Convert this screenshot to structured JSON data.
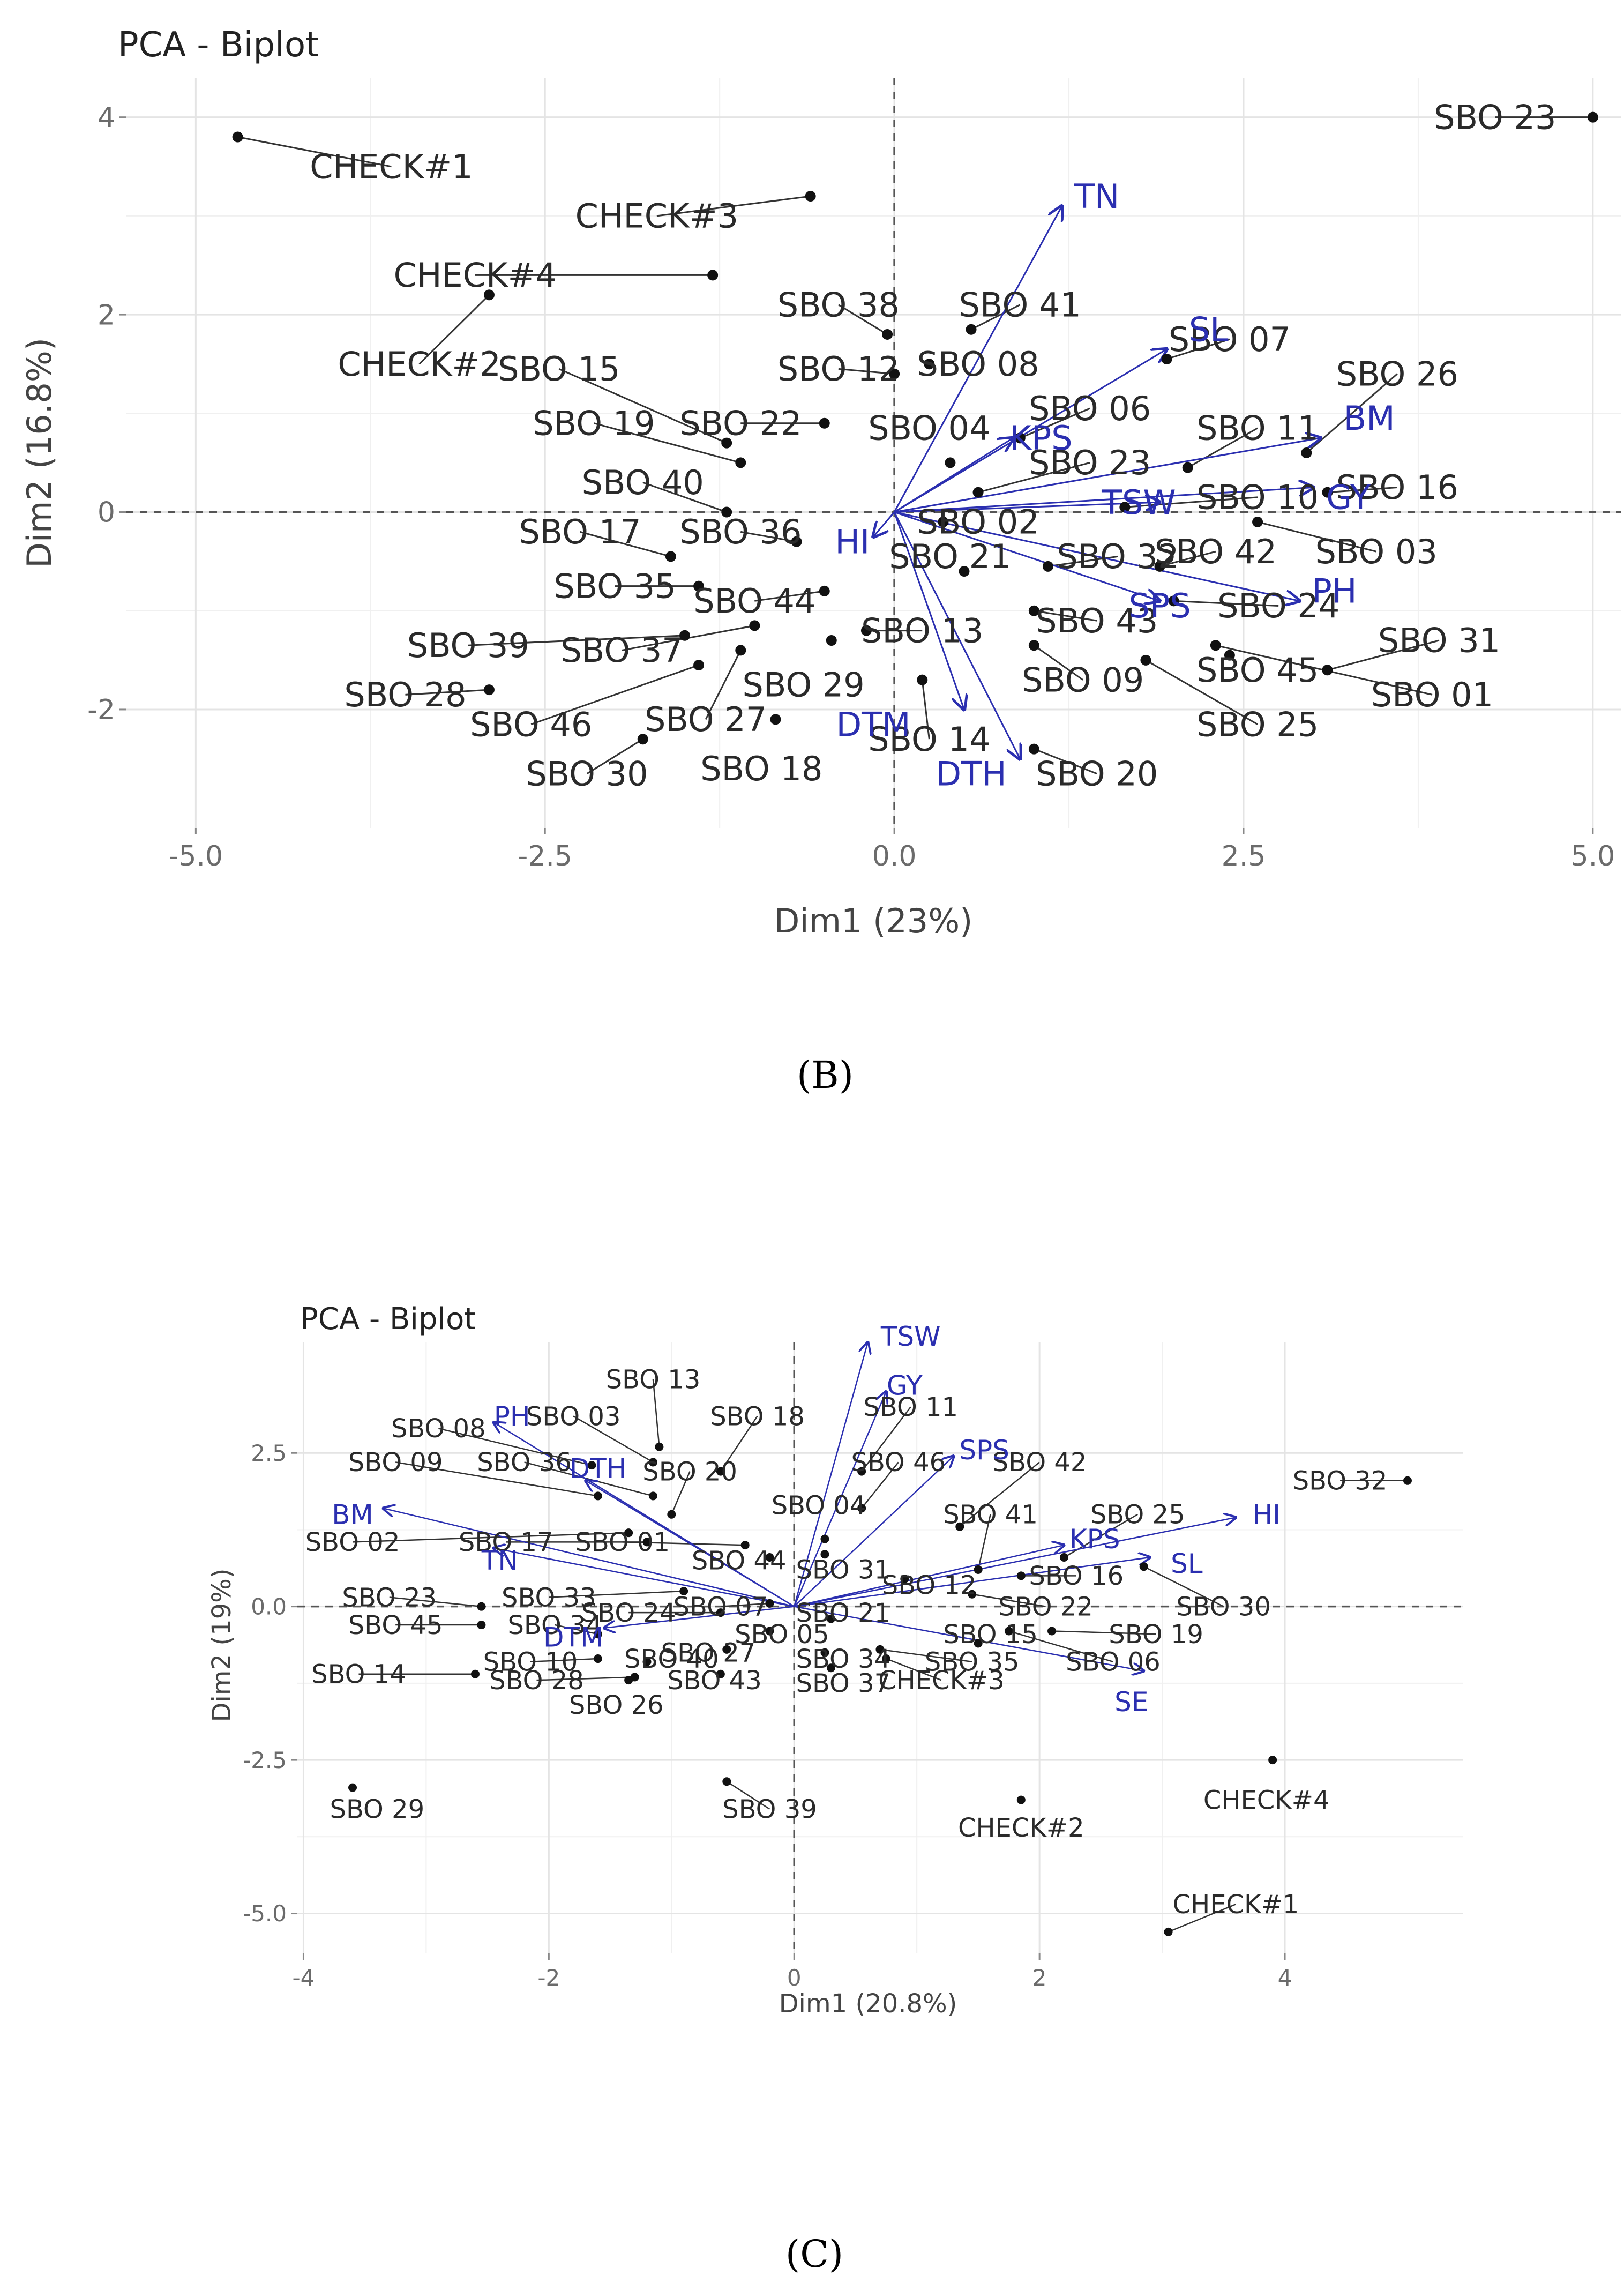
{
  "colors": {
    "background": "#ffffff",
    "grid_major": "#e4e4e4",
    "grid_minor": "#f0f0f0",
    "point": "#111111",
    "text": "#2a2a2a",
    "variable": "#2b2fb0",
    "zero_line": "#555555"
  },
  "chart_data": [
    {
      "type": "scatter",
      "title": "PCA - Biplot",
      "xlabel": "Dim1 (23%)",
      "ylabel": "Dim2 (16.8%)",
      "caption": "(B)",
      "xlim": [
        -5.5,
        5.2
      ],
      "ylim": [
        -3.2,
        4.4
      ],
      "x_ticks": [
        -5.0,
        -2.5,
        0.0,
        2.5,
        5.0
      ],
      "x_tick_labels": [
        "-5.0",
        "-2.5",
        "0.0",
        "2.5",
        "5.0"
      ],
      "y_ticks": [
        -2,
        0,
        2,
        4
      ],
      "y_tick_labels": [
        "-2",
        "0",
        "2",
        "4"
      ],
      "observations": [
        {
          "label": "CHECK#1",
          "x": -4.7,
          "y": 3.8,
          "lx": -3.6,
          "ly": 3.5
        },
        {
          "label": "CHECK#3",
          "x": -0.6,
          "y": 3.2,
          "lx": -1.7,
          "ly": 3.0
        },
        {
          "label": "CHECK#4",
          "x": -1.3,
          "y": 2.4,
          "lx": -3.0,
          "ly": 2.4
        },
        {
          "label": "CHECK#2",
          "x": -2.9,
          "y": 2.2,
          "lx": -3.4,
          "ly": 1.5
        },
        {
          "label": "SBO 23",
          "x": 5.0,
          "y": 4.0,
          "lx": 4.3,
          "ly": 4.0
        },
        {
          "label": "SBO 38",
          "x": -0.05,
          "y": 1.8,
          "lx": -0.4,
          "ly": 2.1
        },
        {
          "label": "SBO 41",
          "x": 0.55,
          "y": 1.85,
          "lx": 0.9,
          "ly": 2.1
        },
        {
          "label": "SBO 12",
          "x": 0.0,
          "y": 1.4,
          "lx": -0.4,
          "ly": 1.45
        },
        {
          "label": "SBO 08",
          "x": 0.25,
          "y": 1.5,
          "lx": 0.6,
          "ly": 1.5
        },
        {
          "label": "SBO 07",
          "x": 1.95,
          "y": 1.55,
          "lx": 2.4,
          "ly": 1.75
        },
        {
          "label": "SBO 26",
          "x": 2.95,
          "y": 0.6,
          "lx": 3.6,
          "ly": 1.4
        },
        {
          "label": "SBO 15",
          "x": -1.2,
          "y": 0.7,
          "lx": -2.4,
          "ly": 1.45
        },
        {
          "label": "SBO 22",
          "x": -0.5,
          "y": 0.9,
          "lx": -1.1,
          "ly": 0.9
        },
        {
          "label": "SBO 19",
          "x": -1.1,
          "y": 0.5,
          "lx": -2.15,
          "ly": 0.9
        },
        {
          "label": "SBO 06",
          "x": 0.9,
          "y": 0.75,
          "lx": 1.4,
          "ly": 1.05
        },
        {
          "label": "SBO 04",
          "x": 0.4,
          "y": 0.5,
          "lx": 0.25,
          "ly": 0.85
        },
        {
          "label": "SBO 11",
          "x": 2.1,
          "y": 0.45,
          "lx": 2.6,
          "ly": 0.85
        },
        {
          "label": "SBO 23",
          "x": 0.6,
          "y": 0.2,
          "lx": 1.4,
          "ly": 0.5
        },
        {
          "label": "SBO 40",
          "x": -1.2,
          "y": 0.0,
          "lx": -1.8,
          "ly": 0.3
        },
        {
          "label": "SBO 10",
          "x": 1.65,
          "y": 0.05,
          "lx": 2.6,
          "ly": 0.15
        },
        {
          "label": "SBO 16",
          "x": 3.1,
          "y": 0.2,
          "lx": 3.6,
          "ly": 0.25
        },
        {
          "label": "SBO 03",
          "x": 2.6,
          "y": -0.1,
          "lx": 3.45,
          "ly": -0.4
        },
        {
          "label": "SBO 02",
          "x": 0.35,
          "y": -0.1,
          "lx": 0.6,
          "ly": -0.1
        },
        {
          "label": "SBO 17",
          "x": -1.6,
          "y": -0.45,
          "lx": -2.25,
          "ly": -0.2
        },
        {
          "label": "SBO 36",
          "x": -0.7,
          "y": -0.3,
          "lx": -1.1,
          "ly": -0.2
        },
        {
          "label": "SBO 21",
          "x": 0.5,
          "y": -0.6,
          "lx": 0.4,
          "ly": -0.45
        },
        {
          "label": "SBO 32",
          "x": 1.1,
          "y": -0.55,
          "lx": 1.6,
          "ly": -0.45
        },
        {
          "label": "SBO 42",
          "x": 1.9,
          "y": -0.55,
          "lx": 2.3,
          "ly": -0.4
        },
        {
          "label": "SBO 35",
          "x": -1.4,
          "y": -0.75,
          "lx": -2.0,
          "ly": -0.75
        },
        {
          "label": "SBO 44",
          "x": -0.5,
          "y": -0.8,
          "lx": -1.0,
          "ly": -0.9
        },
        {
          "label": "SBO 43",
          "x": 1.0,
          "y": -1.0,
          "lx": 1.45,
          "ly": -1.1
        },
        {
          "label": "SBO 24",
          "x": 2.0,
          "y": -0.9,
          "lx": 2.75,
          "ly": -0.95
        },
        {
          "label": "SBO 39",
          "x": -1.5,
          "y": -1.25,
          "lx": -3.05,
          "ly": -1.35
        },
        {
          "label": "SBO 37",
          "x": -1.0,
          "y": -1.15,
          "lx": -1.95,
          "ly": -1.4
        },
        {
          "label": "SBO 13",
          "x": -0.2,
          "y": -1.2,
          "lx": 0.2,
          "ly": -1.2
        },
        {
          "label": "SBO 31",
          "x": 3.1,
          "y": -1.6,
          "lx": 3.9,
          "ly": -1.3
        },
        {
          "label": "SBO 45",
          "x": 2.4,
          "y": -1.45,
          "lx": 2.6,
          "ly": -1.6
        },
        {
          "label": "SBO 09",
          "x": 1.0,
          "y": -1.35,
          "lx": 1.35,
          "ly": -1.7
        },
        {
          "label": "SBO 29",
          "x": -0.45,
          "y": -1.3,
          "lx": -0.65,
          "ly": -1.75
        },
        {
          "label": "SBO 28",
          "x": -2.9,
          "y": -1.8,
          "lx": -3.5,
          "ly": -1.85
        },
        {
          "label": "SBO 01",
          "x": 2.3,
          "y": -1.35,
          "lx": 3.85,
          "ly": -1.85
        },
        {
          "label": "SBO 27",
          "x": -1.1,
          "y": -1.4,
          "lx": -1.35,
          "ly": -2.1
        },
        {
          "label": "SBO 46",
          "x": -1.4,
          "y": -1.55,
          "lx": -2.6,
          "ly": -2.15
        },
        {
          "label": "SBO 25",
          "x": 1.8,
          "y": -1.5,
          "lx": 2.6,
          "ly": -2.15
        },
        {
          "label": "SBO 14",
          "x": 0.2,
          "y": -1.7,
          "lx": 0.25,
          "ly": -2.3
        },
        {
          "label": "SBO 30",
          "x": -1.8,
          "y": -2.3,
          "lx": -2.2,
          "ly": -2.65
        },
        {
          "label": "SBO 18",
          "x": -0.85,
          "y": -2.1,
          "lx": -0.95,
          "ly": -2.6
        },
        {
          "label": "SBO 20",
          "x": 1.0,
          "y": -2.4,
          "lx": 1.45,
          "ly": -2.65
        }
      ],
      "variables": [
        {
          "label": "TN",
          "x": 1.2,
          "y": 3.1,
          "lx": 1.45,
          "ly": 3.2
        },
        {
          "label": "SL",
          "x": 1.95,
          "y": 1.65,
          "lx": 2.25,
          "ly": 1.85
        },
        {
          "label": "BM",
          "x": 3.05,
          "y": 0.75,
          "lx": 3.4,
          "ly": 0.95
        },
        {
          "label": "KPS",
          "x": 0.85,
          "y": 0.75,
          "lx": 1.05,
          "ly": 0.75
        },
        {
          "label": "GY",
          "x": 3.0,
          "y": 0.25,
          "lx": 3.25,
          "ly": 0.15
        },
        {
          "label": "TSW",
          "x": 1.9,
          "y": 0.1,
          "lx": 1.75,
          "ly": 0.1
        },
        {
          "label": "PH",
          "x": 2.9,
          "y": -0.9,
          "lx": 3.15,
          "ly": -0.8
        },
        {
          "label": "SPS",
          "x": 1.9,
          "y": -0.9,
          "lx": 1.9,
          "ly": -0.95
        },
        {
          "label": "HI",
          "x": -0.15,
          "y": -0.25,
          "lx": -0.3,
          "ly": -0.3
        },
        {
          "label": "DTM",
          "x": 0.5,
          "y": -2.0,
          "lx": -0.15,
          "ly": -2.15
        },
        {
          "label": "DTH",
          "x": 0.9,
          "y": -2.5,
          "lx": 0.55,
          "ly": -2.65
        }
      ]
    },
    {
      "type": "scatter",
      "title": "PCA - Biplot",
      "xlabel": "Dim1 (20.8%)",
      "ylabel": "Dim2 (19%)",
      "caption": "(C)",
      "xlim": [
        -4.05,
        5.45
      ],
      "ylim": [
        -5.65,
        4.3
      ],
      "x_ticks": [
        -4,
        -2,
        0,
        2,
        4
      ],
      "x_tick_labels": [
        "-4",
        "-2",
        "0",
        "2",
        "4"
      ],
      "y_ticks": [
        -5.0,
        -2.5,
        0.0,
        2.5
      ],
      "y_tick_labels": [
        "-5.0",
        "-2.5",
        "0.0",
        "2.5"
      ],
      "observations": [
        {
          "label": "SBO 13",
          "x": -1.1,
          "y": 2.6,
          "lx": -1.15,
          "ly": 3.7
        },
        {
          "label": "SBO 08",
          "x": -1.65,
          "y": 2.3,
          "lx": -2.9,
          "ly": 2.9
        },
        {
          "label": "SBO 03",
          "x": -1.15,
          "y": 2.35,
          "lx": -1.8,
          "ly": 3.1
        },
        {
          "label": "SBO 18",
          "x": -0.6,
          "y": 2.2,
          "lx": -0.3,
          "ly": 3.1
        },
        {
          "label": "SBO 11",
          "x": 0.55,
          "y": 2.2,
          "lx": 0.95,
          "ly": 3.25
        },
        {
          "label": "SBO 20",
          "x": -1.0,
          "y": 1.5,
          "lx": -0.85,
          "ly": 2.2
        },
        {
          "label": "SBO 46",
          "x": 0.55,
          "y": 1.6,
          "lx": 0.85,
          "ly": 2.35
        },
        {
          "label": "SBO 42",
          "x": 1.35,
          "y": 1.3,
          "lx": 2.0,
          "ly": 2.35
        },
        {
          "label": "SBO 09",
          "x": -1.6,
          "y": 1.8,
          "lx": -3.25,
          "ly": 2.35
        },
        {
          "label": "SBO 36",
          "x": -1.15,
          "y": 1.8,
          "lx": -2.2,
          "ly": 2.35
        },
        {
          "label": "SBO 04",
          "x": 0.25,
          "y": 1.1,
          "lx": 0.2,
          "ly": 1.65
        },
        {
          "label": "SBO 41",
          "x": 1.5,
          "y": 0.6,
          "lx": 1.6,
          "ly": 1.5
        },
        {
          "label": "SBO 25",
          "x": 2.2,
          "y": 0.8,
          "lx": 2.8,
          "ly": 1.5
        },
        {
          "label": "SBO 32",
          "x": 5.0,
          "y": 2.05,
          "lx": 4.45,
          "ly": 2.05
        },
        {
          "label": "SBO 02",
          "x": -1.35,
          "y": 1.2,
          "lx": -3.6,
          "ly": 1.05
        },
        {
          "label": "SBO 17",
          "x": -1.2,
          "y": 1.05,
          "lx": -2.35,
          "ly": 1.05
        },
        {
          "label": "SBO 01",
          "x": -0.4,
          "y": 1.0,
          "lx": -1.4,
          "ly": 1.05
        },
        {
          "label": "SBO 44",
          "x": -0.2,
          "y": 0.8,
          "lx": -0.45,
          "ly": 0.75
        },
        {
          "label": "SBO 31",
          "x": 0.25,
          "y": 0.85,
          "lx": 0.4,
          "ly": 0.6
        },
        {
          "label": "SBO 12",
          "x": 0.9,
          "y": 0.45,
          "lx": 1.1,
          "ly": 0.35
        },
        {
          "label": "SBO 16",
          "x": 1.85,
          "y": 0.5,
          "lx": 2.3,
          "ly": 0.5
        },
        {
          "label": "SBO 23",
          "x": -2.55,
          "y": 0.0,
          "lx": -3.3,
          "ly": 0.15
        },
        {
          "label": "SBO 33",
          "x": -0.9,
          "y": 0.25,
          "lx": -2.0,
          "ly": 0.15
        },
        {
          "label": "SBO 07",
          "x": -0.2,
          "y": 0.05,
          "lx": -0.6,
          "ly": 0.0
        },
        {
          "label": "SBO 22",
          "x": 1.45,
          "y": 0.2,
          "lx": 2.05,
          "ly": 0.0
        },
        {
          "label": "SBO 30",
          "x": 2.85,
          "y": 0.65,
          "lx": 3.5,
          "ly": 0.0
        },
        {
          "label": "SBO 24",
          "x": -0.6,
          "y": -0.1,
          "lx": -1.35,
          "ly": -0.1
        },
        {
          "label": "SBO 21",
          "x": 0.3,
          "y": -0.2,
          "lx": 0.4,
          "ly": -0.1
        },
        {
          "label": "SBO 45",
          "x": -2.55,
          "y": -0.3,
          "lx": -3.25,
          "ly": -0.3
        },
        {
          "label": "SBO 34",
          "x": -1.6,
          "y": -0.45,
          "lx": -1.95,
          "ly": -0.3
        },
        {
          "label": "SBO 05",
          "x": -0.2,
          "y": -0.4,
          "lx": -0.1,
          "ly": -0.45
        },
        {
          "label": "SBO 15",
          "x": 1.5,
          "y": -0.6,
          "lx": 1.6,
          "ly": -0.45
        },
        {
          "label": "SBO 19",
          "x": 2.1,
          "y": -0.4,
          "lx": 2.95,
          "ly": -0.45
        },
        {
          "label": "SBO 10",
          "x": -1.6,
          "y": -0.85,
          "lx": -2.15,
          "ly": -0.9
        },
        {
          "label": "SBO 27",
          "x": -0.55,
          "y": -0.7,
          "lx": -0.7,
          "ly": -0.75
        },
        {
          "label": "SBO 40",
          "x": -1.2,
          "y": -0.9,
          "lx": -1.0,
          "ly": -0.85
        },
        {
          "label": "SBO 34",
          "x": 0.25,
          "y": -0.75,
          "lx": 0.4,
          "ly": -0.85
        },
        {
          "label": "SBO 35",
          "x": 0.7,
          "y": -0.7,
          "lx": 1.45,
          "ly": -0.9
        },
        {
          "label": "SBO 06",
          "x": 1.75,
          "y": -0.4,
          "lx": 2.6,
          "ly": -0.9
        },
        {
          "label": "SBO 14",
          "x": -2.6,
          "y": -1.1,
          "lx": -3.55,
          "ly": -1.1
        },
        {
          "label": "SBO 28",
          "x": -1.3,
          "y": -1.15,
          "lx": -2.1,
          "ly": -1.2
        },
        {
          "label": "SBO 43",
          "x": -0.6,
          "y": -1.1,
          "lx": -0.65,
          "ly": -1.2
        },
        {
          "label": "SBO 37",
          "x": 0.3,
          "y": -1.0,
          "lx": 0.4,
          "ly": -1.25
        },
        {
          "label": "CHECK#3",
          "x": 0.75,
          "y": -0.85,
          "lx": 1.2,
          "ly": -1.2
        },
        {
          "label": "SBO 26",
          "x": -1.35,
          "y": -1.2,
          "lx": -1.45,
          "ly": -1.6
        },
        {
          "label": "SBO 29",
          "x": -3.6,
          "y": -2.95,
          "lx": -3.4,
          "ly": -3.3
        },
        {
          "label": "SBO 39",
          "x": -0.55,
          "y": -2.85,
          "lx": -0.2,
          "ly": -3.3
        },
        {
          "label": "CHECK#4",
          "x": 3.9,
          "y": -2.5,
          "lx": 3.85,
          "ly": -3.15
        },
        {
          "label": "CHECK#2",
          "x": 1.85,
          "y": -3.15,
          "lx": 1.85,
          "ly": -3.6
        },
        {
          "label": "CHECK#1",
          "x": 3.05,
          "y": -5.3,
          "lx": 3.6,
          "ly": -4.85
        }
      ],
      "variables": [
        {
          "label": "TSW",
          "x": 0.6,
          "y": 4.3,
          "lx": 0.95,
          "ly": 4.4
        },
        {
          "label": "GY",
          "x": 0.75,
          "y": 3.5,
          "lx": 0.9,
          "ly": 3.6
        },
        {
          "label": "SPS",
          "x": 1.3,
          "y": 2.45,
          "lx": 1.55,
          "ly": 2.55
        },
        {
          "label": "PH",
          "x": -2.45,
          "y": 3.0,
          "lx": -2.3,
          "ly": 3.1
        },
        {
          "label": "DTH",
          "x": -1.7,
          "y": 2.05,
          "lx": -1.6,
          "ly": 2.25
        },
        {
          "label": "BM",
          "x": -3.35,
          "y": 1.6,
          "lx": -3.6,
          "ly": 1.5
        },
        {
          "label": "TN",
          "x": -2.45,
          "y": 0.95,
          "lx": -2.4,
          "ly": 0.75
        },
        {
          "label": "KPS",
          "x": 2.2,
          "y": 1.0,
          "lx": 2.45,
          "ly": 1.1
        },
        {
          "label": "SL",
          "x": 2.9,
          "y": 0.8,
          "lx": 3.2,
          "ly": 0.7
        },
        {
          "label": "HI",
          "x": 3.6,
          "y": 1.45,
          "lx": 3.85,
          "ly": 1.5
        },
        {
          "label": "DTM",
          "x": -1.55,
          "y": -0.35,
          "lx": -1.8,
          "ly": -0.5
        },
        {
          "label": "SE",
          "x": 2.85,
          "y": -1.05,
          "lx": 2.75,
          "ly": -1.55
        }
      ]
    }
  ]
}
